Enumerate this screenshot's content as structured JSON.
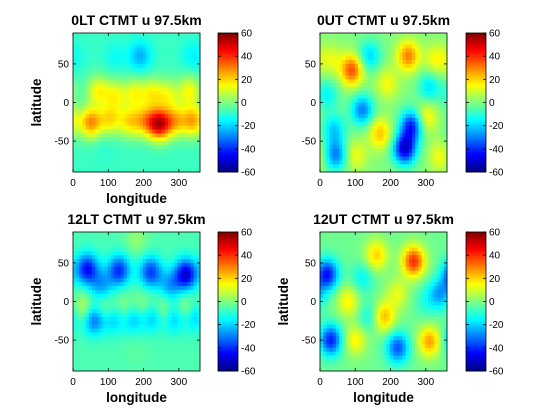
{
  "colors": {
    "background": "#ffffff",
    "colormap": "jet",
    "colormap_stops": [
      "#00008f",
      "#0000ff",
      "#00ffff",
      "#ffff00",
      "#ff0000",
      "#800000"
    ]
  },
  "chart_data": [
    {
      "type": "heatmap",
      "title": "0LT CTMT u 97.5km",
      "xlabel": "longitude",
      "ylabel": "latitude",
      "xlim": [
        0,
        360
      ],
      "ylim": [
        -90,
        90
      ],
      "xticks": [
        "0",
        "100",
        "200",
        "300"
      ],
      "yticks": [
        "50",
        "0",
        "-50"
      ],
      "colorbar": {
        "range": [
          -60,
          60
        ],
        "ticks": [
          "60",
          "40",
          "20",
          "0",
          "-20",
          "-40",
          "-60"
        ]
      },
      "background_value": -8,
      "features": [
        {
          "lon": 50,
          "lat": -26,
          "value": 28
        },
        {
          "lon": 245,
          "lat": -28,
          "value": 48
        },
        {
          "lon": 340,
          "lat": -24,
          "value": 24
        },
        {
          "lon": 105,
          "lat": -22,
          "value": 16
        },
        {
          "lon": 160,
          "lat": -25,
          "value": 16
        },
        {
          "lon": 205,
          "lat": -24,
          "value": 18
        },
        {
          "lon": 290,
          "lat": -24,
          "value": 18
        },
        {
          "lon": 70,
          "lat": 15,
          "value": 14
        },
        {
          "lon": 120,
          "lat": 10,
          "value": 12
        },
        {
          "lon": 175,
          "lat": 12,
          "value": 12
        },
        {
          "lon": 225,
          "lat": 12,
          "value": 12
        },
        {
          "lon": 270,
          "lat": 10,
          "value": 10
        },
        {
          "lon": 330,
          "lat": 15,
          "value": 14
        },
        {
          "lon": 190,
          "lat": 60,
          "value": -24
        },
        {
          "lon": 120,
          "lat": 58,
          "value": -14
        },
        {
          "lon": 340,
          "lat": 60,
          "value": -16
        },
        {
          "lon": 20,
          "lat": 58,
          "value": -10
        },
        {
          "lon": 90,
          "lat": -60,
          "value": -10
        },
        {
          "lon": 180,
          "lat": -60,
          "value": -8
        },
        {
          "lon": 270,
          "lat": -60,
          "value": -8
        }
      ]
    },
    {
      "type": "heatmap",
      "title": "0UT CTMT u 97.5km",
      "xlabel": "",
      "ylabel": "",
      "xlim": [
        0,
        360
      ],
      "ylim": [
        -90,
        90
      ],
      "xticks": [
        "0",
        "100",
        "200",
        "300"
      ],
      "yticks": [
        "50",
        "0",
        "-50"
      ],
      "colorbar": {
        "range": [
          -60,
          60
        ],
        "ticks": [
          "60",
          "40",
          "20",
          "0",
          "-20",
          "-40",
          "-60"
        ]
      },
      "background_value": 0,
      "features": [
        {
          "lon": 90,
          "lat": 42,
          "value": 36
        },
        {
          "lon": 250,
          "lat": 60,
          "value": 30
        },
        {
          "lon": 190,
          "lat": 25,
          "value": 14
        },
        {
          "lon": 330,
          "lat": 55,
          "value": 16
        },
        {
          "lon": 30,
          "lat": 55,
          "value": 12
        },
        {
          "lon": 300,
          "lat": -20,
          "value": 18
        },
        {
          "lon": 170,
          "lat": -40,
          "value": 22
        },
        {
          "lon": 100,
          "lat": -68,
          "value": 14
        },
        {
          "lon": 340,
          "lat": -70,
          "value": 14
        },
        {
          "lon": 260,
          "lat": -30,
          "value": -42
        },
        {
          "lon": 240,
          "lat": -60,
          "value": -50
        },
        {
          "lon": 120,
          "lat": -10,
          "value": -30
        },
        {
          "lon": 40,
          "lat": -35,
          "value": -20
        },
        {
          "lon": 45,
          "lat": -68,
          "value": -30
        },
        {
          "lon": 140,
          "lat": 60,
          "value": -20
        },
        {
          "lon": 310,
          "lat": 20,
          "value": -18
        },
        {
          "lon": 20,
          "lat": 10,
          "value": -15
        }
      ]
    },
    {
      "type": "heatmap",
      "title": "12LT CTMT u 97.5km",
      "xlabel": "longitude",
      "ylabel": "latitude",
      "xlim": [
        0,
        360
      ],
      "ylim": [
        -90,
        90
      ],
      "xticks": [
        "0",
        "100",
        "200",
        "300"
      ],
      "yticks": [
        "50",
        "0",
        "-50"
      ],
      "colorbar": {
        "range": [
          -60,
          60
        ],
        "ticks": [
          "60",
          "40",
          "20",
          "0",
          "-20",
          "-40",
          "-60"
        ]
      },
      "background_value": -6,
      "features": [
        {
          "lon": 40,
          "lat": 42,
          "value": -44
        },
        {
          "lon": 130,
          "lat": 40,
          "value": -40
        },
        {
          "lon": 220,
          "lat": 38,
          "value": -38
        },
        {
          "lon": 320,
          "lat": 35,
          "value": -50
        },
        {
          "lon": 80,
          "lat": 20,
          "value": -25
        },
        {
          "lon": 275,
          "lat": 20,
          "value": -25
        },
        {
          "lon": 60,
          "lat": -22,
          "value": -38
        },
        {
          "lon": 115,
          "lat": -20,
          "value": -28
        },
        {
          "lon": 170,
          "lat": -20,
          "value": -28
        },
        {
          "lon": 225,
          "lat": -18,
          "value": -30
        },
        {
          "lon": 285,
          "lat": -20,
          "value": -26
        },
        {
          "lon": 345,
          "lat": -18,
          "value": -26
        },
        {
          "lon": 30,
          "lat": -10,
          "value": 12
        },
        {
          "lon": 90,
          "lat": -12,
          "value": 12
        },
        {
          "lon": 145,
          "lat": -12,
          "value": 10
        },
        {
          "lon": 200,
          "lat": -10,
          "value": 10
        },
        {
          "lon": 255,
          "lat": -12,
          "value": 12
        },
        {
          "lon": 320,
          "lat": -10,
          "value": 10
        },
        {
          "lon": 180,
          "lat": 80,
          "value": 2
        },
        {
          "lon": 180,
          "lat": -65,
          "value": -4
        }
      ]
    },
    {
      "type": "heatmap",
      "title": "12UT CTMT u 97.5km",
      "xlabel": "longitude",
      "ylabel": "latitude",
      "xlim": [
        0,
        360
      ],
      "ylim": [
        -90,
        90
      ],
      "xticks": [
        "0",
        "100",
        "200",
        "300"
      ],
      "yticks": [
        "50",
        "0",
        "-50"
      ],
      "colorbar": {
        "range": [
          -60,
          60
        ],
        "ticks": [
          "60",
          "40",
          "20",
          "0",
          "-20",
          "-40",
          "-60"
        ]
      },
      "background_value": -2,
      "features": [
        {
          "lon": 265,
          "lat": 52,
          "value": 40
        },
        {
          "lon": 310,
          "lat": -52,
          "value": 26
        },
        {
          "lon": 160,
          "lat": 60,
          "value": 20
        },
        {
          "lon": 180,
          "lat": -20,
          "value": 24
        },
        {
          "lon": 80,
          "lat": 0,
          "value": 16
        },
        {
          "lon": 100,
          "lat": -50,
          "value": 16
        },
        {
          "lon": 220,
          "lat": 10,
          "value": 12
        },
        {
          "lon": 20,
          "lat": 35,
          "value": -44
        },
        {
          "lon": 30,
          "lat": -50,
          "value": -42
        },
        {
          "lon": 220,
          "lat": -60,
          "value": -35
        },
        {
          "lon": 340,
          "lat": 10,
          "value": -25
        },
        {
          "lon": 140,
          "lat": -20,
          "value": -15
        },
        {
          "lon": 120,
          "lat": 30,
          "value": -15
        },
        {
          "lon": 300,
          "lat": 0,
          "value": -10
        }
      ]
    }
  ]
}
